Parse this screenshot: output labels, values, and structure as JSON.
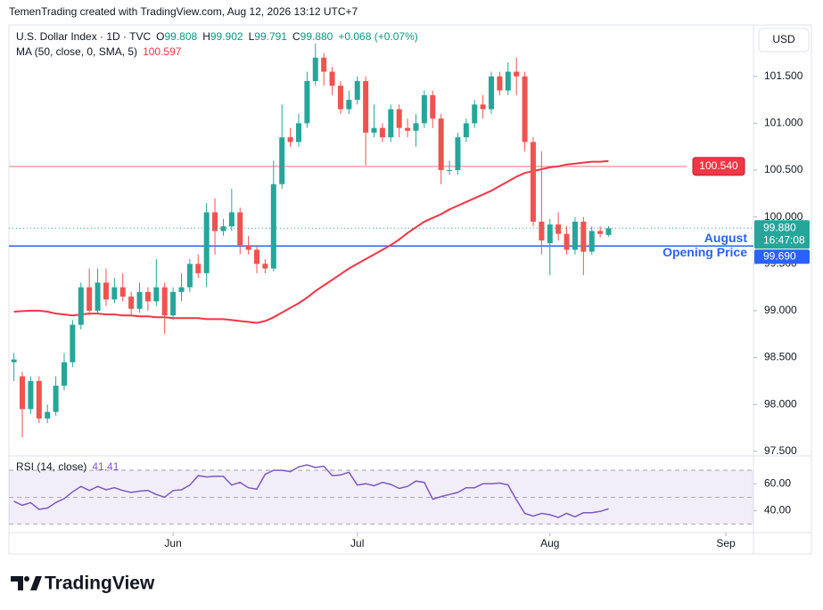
{
  "header": {
    "attribution": "TemenTrading created with TradingView.com, Aug 12, 2026 13:12 UTC+7"
  },
  "footer": {
    "logo": "TradingView"
  },
  "chart_data": [
    {
      "type": "candlestick",
      "title": "U.S. Dollar Index · 1D · TVC",
      "ohlc_labels": [
        "O",
        "H",
        "L",
        "C"
      ],
      "change": "+0.068 (+0.07%)",
      "currency": "USD",
      "up_color": "#26a69a",
      "down_color": "#ef5350",
      "open": [
        98.45,
        98.3,
        97.95,
        98.25,
        97.85,
        97.92,
        98.2,
        98.45,
        98.85,
        99.25,
        99.0,
        99.3,
        99.12,
        99.25,
        99.15,
        99.02,
        99.2,
        99.1,
        99.25,
        98.95,
        99.2,
        99.25,
        99.5,
        99.4,
        100.05,
        99.85,
        99.9,
        100.05,
        99.7,
        99.65,
        99.5,
        99.45,
        100.35,
        100.85,
        100.8,
        101.0,
        101.45,
        101.7,
        101.55,
        101.4,
        101.15,
        101.25,
        101.45,
        100.9,
        100.95,
        100.85,
        101.15,
        100.95,
        100.92,
        101.0,
        101.3,
        101.05,
        100.5,
        100.5,
        100.85,
        101.0,
        101.2,
        101.15,
        101.5,
        101.35,
        101.55,
        101.5,
        100.8,
        99.95,
        99.72,
        99.92,
        99.82,
        99.65,
        99.95,
        99.63,
        99.85,
        99.808
      ],
      "high": [
        98.55,
        98.35,
        98.3,
        98.3,
        98.0,
        98.3,
        98.55,
        98.9,
        99.3,
        99.45,
        99.45,
        99.45,
        99.35,
        99.4,
        99.2,
        99.3,
        99.25,
        99.55,
        99.3,
        99.25,
        99.4,
        99.55,
        99.6,
        100.15,
        100.2,
        99.98,
        100.3,
        100.1,
        99.8,
        99.7,
        99.55,
        100.6,
        101.2,
        100.95,
        101.1,
        101.55,
        101.85,
        101.75,
        101.6,
        101.45,
        101.35,
        101.5,
        101.5,
        101.2,
        101.0,
        101.2,
        101.2,
        101.05,
        101.1,
        101.35,
        101.35,
        101.1,
        100.6,
        100.9,
        101.05,
        101.25,
        101.3,
        101.55,
        101.55,
        101.65,
        101.7,
        101.55,
        100.85,
        100.7,
        99.98,
        100.05,
        99.9,
        100.0,
        100.0,
        99.9,
        99.9,
        99.902
      ],
      "low": [
        98.25,
        97.65,
        97.9,
        97.8,
        97.8,
        97.88,
        98.15,
        98.4,
        98.8,
        98.95,
        98.98,
        99.05,
        99.08,
        99.1,
        98.95,
        98.98,
        99.0,
        99.05,
        98.75,
        98.9,
        99.1,
        99.2,
        99.35,
        99.25,
        99.6,
        99.8,
        99.85,
        99.6,
        99.6,
        99.4,
        99.4,
        99.42,
        100.3,
        100.75,
        100.75,
        100.95,
        101.4,
        101.4,
        101.3,
        101.1,
        101.1,
        101.2,
        100.55,
        100.85,
        100.8,
        100.8,
        100.85,
        100.85,
        100.75,
        100.95,
        100.95,
        100.35,
        100.45,
        100.45,
        100.8,
        100.95,
        101.05,
        101.1,
        101.3,
        101.3,
        101.3,
        100.7,
        99.9,
        99.6,
        99.38,
        99.75,
        99.6,
        99.6,
        99.38,
        99.6,
        99.78,
        99.791
      ],
      "close": [
        98.48,
        97.95,
        98.25,
        97.85,
        97.92,
        98.2,
        98.45,
        98.85,
        99.25,
        99.0,
        99.3,
        99.12,
        99.25,
        99.15,
        99.02,
        99.2,
        99.1,
        99.25,
        98.95,
        99.2,
        99.25,
        99.5,
        99.4,
        100.05,
        99.85,
        99.9,
        100.05,
        99.7,
        99.65,
        99.5,
        99.45,
        100.35,
        100.85,
        100.8,
        101.0,
        101.45,
        101.7,
        101.55,
        101.4,
        101.15,
        101.25,
        101.45,
        100.9,
        100.95,
        100.85,
        101.15,
        100.95,
        100.92,
        101.0,
        101.3,
        101.05,
        100.5,
        100.5,
        100.85,
        101.0,
        101.2,
        101.15,
        101.5,
        101.35,
        101.55,
        101.5,
        100.8,
        99.95,
        99.75,
        99.92,
        99.82,
        99.65,
        99.95,
        99.63,
        99.85,
        99.82,
        99.88
      ],
      "overlays": [
        {
          "type": "line",
          "name": "MA (50, close, 0, SMA, 5)",
          "color": "#f23645",
          "values": [
            98.99,
            98.995,
            99.0,
            99.0,
            98.99,
            98.97,
            98.96,
            98.95,
            98.96,
            98.97,
            98.97,
            98.96,
            98.96,
            98.95,
            98.95,
            98.94,
            98.94,
            98.93,
            98.93,
            98.92,
            98.92,
            98.92,
            98.92,
            98.91,
            98.91,
            98.91,
            98.9,
            98.89,
            98.88,
            98.87,
            98.89,
            98.93,
            98.98,
            99.03,
            99.08,
            99.14,
            99.21,
            99.27,
            99.33,
            99.39,
            99.45,
            99.5,
            99.55,
            99.6,
            99.65,
            99.7,
            99.76,
            99.83,
            99.89,
            99.95,
            99.99,
            100.03,
            100.08,
            100.12,
            100.16,
            100.2,
            100.24,
            100.28,
            100.33,
            100.38,
            100.43,
            100.47,
            100.49,
            100.51,
            100.53,
            100.54,
            100.56,
            100.57,
            100.58,
            100.59,
            100.59,
            100.597
          ]
        }
      ],
      "levels": [
        {
          "value": 100.54,
          "label": "100.540",
          "color": "#f7a1a8",
          "label_color": "#f23645"
        },
        {
          "value": 99.69,
          "label": "99.690",
          "color": "#2962ff",
          "label_color": "#2962ff",
          "annotation": [
            "August",
            "Opening Price"
          ]
        }
      ],
      "last_price": {
        "value": 99.88,
        "label": "99.880",
        "countdown": "16:47:08",
        "color": "#26a69a"
      },
      "xlim": [
        -0.6,
        88.3
      ],
      "xticks": [
        {
          "value": 19,
          "label": "Jun"
        },
        {
          "value": 41,
          "label": "Jul"
        },
        {
          "value": 64,
          "label": "Aug"
        },
        {
          "value": 85,
          "label": "Sep"
        }
      ],
      "ylim": [
        97.46,
        102.03
      ],
      "yticks": [
        {
          "value": 97.5,
          "label": "97.500"
        },
        {
          "value": 98,
          "label": "98.000"
        },
        {
          "value": 98.5,
          "label": "98.500"
        },
        {
          "value": 99,
          "label": "99.000"
        },
        {
          "value": 99.5,
          "label": "99.500"
        },
        {
          "value": 100,
          "label": "100.000"
        },
        {
          "value": 100.5,
          "label": "100.500"
        },
        {
          "value": 101,
          "label": "101.000"
        },
        {
          "value": 101.5,
          "label": "101.500"
        }
      ]
    },
    {
      "type": "line",
      "title": "RSI (14, close)",
      "color": "#7e57c2",
      "values": [
        47,
        44,
        46,
        41,
        42,
        46,
        49,
        54,
        58,
        55,
        58,
        55.5,
        57,
        55,
        53.5,
        54.5,
        55,
        52,
        50,
        55,
        55.5,
        59,
        66,
        65,
        65.5,
        65.5,
        59,
        61,
        57,
        56,
        67,
        70,
        70,
        69,
        72.5,
        74,
        72,
        73,
        66,
        66.5,
        68.5,
        59,
        60,
        58.5,
        61,
        59.5,
        56.5,
        58,
        62,
        61,
        48.5,
        50.5,
        52,
        53.5,
        57,
        57,
        60,
        60,
        60.5,
        59,
        48,
        38,
        36,
        38,
        37,
        35,
        38,
        35.5,
        38.5,
        38.5,
        39.5,
        41.41
      ],
      "bands": [
        30,
        50,
        70
      ],
      "band_color": "rgba(126,87,194,0.1)",
      "xlim": [
        -0.6,
        88.3
      ],
      "ylim": [
        25.8,
        80.6
      ],
      "yticks": [
        {
          "value": 40,
          "label": "40.00"
        },
        {
          "value": 60,
          "label": "60.00"
        }
      ]
    }
  ]
}
